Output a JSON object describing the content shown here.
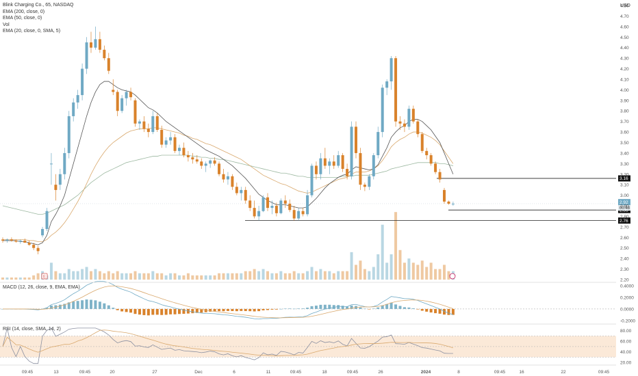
{
  "header": {
    "title": "Blink Charging Co., 65, NASDAQ",
    "indicators": [
      "EMA (200, close, 0)",
      "EMA (50, close, 0)",
      "Vol",
      "EMA (20, close, 0, SMA, 5)"
    ],
    "currency": "USD"
  },
  "panes": {
    "macd_label": "MACD (12, 26, close, 9, EMA, EMA)",
    "rsi_label": "RSI (14, close, SMA, 14, 2)"
  },
  "colors": {
    "up": "#6fa9c4",
    "down": "#d9822b",
    "ema20": "#555555",
    "ema50": "#d9a86c",
    "ema200": "#9cb8a0",
    "vol_up": "#b9d7e3",
    "vol_down": "#efc9a2",
    "macd_line": "#6fa9c4",
    "signal_line": "#d9a86c",
    "rsi_line": "#8a8fa0",
    "rsi_ma": "#d9a86c",
    "rsi_band": "#fbe9d8"
  },
  "chart_data": [
    {
      "type": "candlestick",
      "title": "Blink Charging Co., 65, NASDAQ",
      "ylabel": "USD",
      "ylim": [
        2.2,
        4.8
      ],
      "y_ticks": [
        "4.80",
        "4.70",
        "4.60",
        "4.50",
        "4.40",
        "4.30",
        "4.20",
        "4.10",
        "4.00",
        "3.90",
        "3.80",
        "3.70",
        "3.60",
        "3.50",
        "3.40",
        "3.30",
        "3.20",
        "3.10",
        "3.00",
        "2.90",
        "2.80",
        "2.70",
        "2.60",
        "2.50",
        "2.40",
        "2.30",
        "2.20"
      ],
      "x_ticks": [
        "09:45",
        "13",
        "09:45",
        "20",
        "27",
        "Dec",
        "6",
        "11",
        "09:45",
        "18",
        "09:45",
        "26",
        "2024",
        "8",
        "09:45",
        "16",
        "22",
        "09:45"
      ],
      "ohlc": [
        [
          2.58,
          2.6,
          2.55,
          2.57
        ],
        [
          2.57,
          2.59,
          2.55,
          2.58
        ],
        [
          2.58,
          2.6,
          2.56,
          2.57
        ],
        [
          2.57,
          2.58,
          2.55,
          2.56
        ],
        [
          2.56,
          2.58,
          2.54,
          2.57
        ],
        [
          2.57,
          2.59,
          2.55,
          2.55
        ],
        [
          2.55,
          2.57,
          2.52,
          2.53
        ],
        [
          2.53,
          2.55,
          2.48,
          2.5
        ],
        [
          2.5,
          2.52,
          2.44,
          2.47
        ],
        [
          2.62,
          2.7,
          2.6,
          2.68
        ],
        [
          2.68,
          2.88,
          2.66,
          2.85
        ],
        [
          3.3,
          3.4,
          3.1,
          3.3
        ],
        [
          3.1,
          3.2,
          2.95,
          3.05
        ],
        [
          3.1,
          3.25,
          3.05,
          3.2
        ],
        [
          3.2,
          3.45,
          3.15,
          3.4
        ],
        [
          3.4,
          3.8,
          3.35,
          3.75
        ],
        [
          3.75,
          3.92,
          3.7,
          3.88
        ],
        [
          3.88,
          4.0,
          3.82,
          3.95
        ],
        [
          3.95,
          4.25,
          3.9,
          4.2
        ],
        [
          4.2,
          4.5,
          4.15,
          4.45
        ],
        [
          4.45,
          4.55,
          4.35,
          4.4
        ],
        [
          4.4,
          4.6,
          4.38,
          4.48
        ],
        [
          4.48,
          4.55,
          4.35,
          4.38
        ],
        [
          4.38,
          4.42,
          4.28,
          4.3
        ],
        [
          4.3,
          4.35,
          4.15,
          4.18
        ],
        [
          4.0,
          4.1,
          3.95,
          3.98
        ],
        [
          3.98,
          4.0,
          3.75,
          3.8
        ],
        [
          3.8,
          3.95,
          3.78,
          3.92
        ],
        [
          3.92,
          4.0,
          3.85,
          3.98
        ],
        [
          3.98,
          4.02,
          3.9,
          3.93
        ],
        [
          3.9,
          3.92,
          3.65,
          3.68
        ],
        [
          3.68,
          3.72,
          3.62,
          3.7
        ],
        [
          3.7,
          3.75,
          3.6,
          3.63
        ],
        [
          3.63,
          3.68,
          3.55,
          3.6
        ],
        [
          3.6,
          3.8,
          3.58,
          3.75
        ],
        [
          3.75,
          3.78,
          3.6,
          3.62
        ],
        [
          3.62,
          3.66,
          3.45,
          3.48
        ],
        [
          3.48,
          3.55,
          3.45,
          3.52
        ],
        [
          3.52,
          3.6,
          3.48,
          3.55
        ],
        [
          3.55,
          3.58,
          3.4,
          3.42
        ],
        [
          3.42,
          3.48,
          3.38,
          3.45
        ],
        [
          3.45,
          3.5,
          3.36,
          3.38
        ],
        [
          3.38,
          3.42,
          3.32,
          3.36
        ],
        [
          3.36,
          3.4,
          3.3,
          3.34
        ],
        [
          3.34,
          3.38,
          3.3,
          3.32
        ],
        [
          3.32,
          3.35,
          3.25,
          3.28
        ],
        [
          3.28,
          3.32,
          3.22,
          3.3
        ],
        [
          3.3,
          3.34,
          3.26,
          3.33
        ],
        [
          3.33,
          3.36,
          3.28,
          3.3
        ],
        [
          3.3,
          3.32,
          3.18,
          3.2
        ],
        [
          3.2,
          3.25,
          3.12,
          3.15
        ],
        [
          3.15,
          3.22,
          3.1,
          3.18
        ],
        [
          3.18,
          3.2,
          3.05,
          3.08
        ],
        [
          3.08,
          3.12,
          3.0,
          3.02
        ],
        [
          3.02,
          3.08,
          2.95,
          3.05
        ],
        [
          3.05,
          3.08,
          2.92,
          2.95
        ],
        [
          2.95,
          3.0,
          2.85,
          2.88
        ],
        [
          2.88,
          2.95,
          2.78,
          2.8
        ],
        [
          2.8,
          2.9,
          2.76,
          2.85
        ],
        [
          2.85,
          3.0,
          2.84,
          2.98
        ],
        [
          2.98,
          3.02,
          2.85,
          2.88
        ],
        [
          2.88,
          2.95,
          2.82,
          2.9
        ],
        [
          2.9,
          2.93,
          2.8,
          2.83
        ],
        [
          2.83,
          2.97,
          2.82,
          2.95
        ],
        [
          2.95,
          3.0,
          2.88,
          2.92
        ],
        [
          2.92,
          2.96,
          2.84,
          2.86
        ],
        [
          2.86,
          2.9,
          2.76,
          2.78
        ],
        [
          2.78,
          2.88,
          2.76,
          2.85
        ],
        [
          2.85,
          2.88,
          2.8,
          2.82
        ],
        [
          2.82,
          3.05,
          2.8,
          3.0
        ],
        [
          3.0,
          3.3,
          2.98,
          3.28
        ],
        [
          3.28,
          3.32,
          3.15,
          3.2
        ],
        [
          3.2,
          3.4,
          3.15,
          3.35
        ],
        [
          3.35,
          3.45,
          3.25,
          3.28
        ],
        [
          3.28,
          3.35,
          3.2,
          3.32
        ],
        [
          3.32,
          3.38,
          3.25,
          3.28
        ],
        [
          3.28,
          3.42,
          3.26,
          3.38
        ],
        [
          3.38,
          3.4,
          3.22,
          3.25
        ],
        [
          3.25,
          3.3,
          3.15,
          3.18
        ],
        [
          3.18,
          3.7,
          3.15,
          3.65
        ],
        [
          3.65,
          3.7,
          3.35,
          3.4
        ],
        [
          3.4,
          3.45,
          3.05,
          3.1
        ],
        [
          3.1,
          3.12,
          3.04,
          3.08
        ],
        [
          3.08,
          3.2,
          3.05,
          3.18
        ],
        [
          3.18,
          3.4,
          3.15,
          3.38
        ],
        [
          3.38,
          3.65,
          3.35,
          3.6
        ],
        [
          3.6,
          4.05,
          3.55,
          4.02
        ],
        [
          4.02,
          4.1,
          3.95,
          4.08
        ],
        [
          4.08,
          4.32,
          4.0,
          4.3
        ],
        [
          4.3,
          4.32,
          3.65,
          3.7
        ],
        [
          3.7,
          3.75,
          3.62,
          3.68
        ],
        [
          3.68,
          3.72,
          3.6,
          3.65
        ],
        [
          3.65,
          3.85,
          3.62,
          3.82
        ],
        [
          3.82,
          3.85,
          3.68,
          3.7
        ],
        [
          3.7,
          3.72,
          3.55,
          3.58
        ],
        [
          3.58,
          3.6,
          3.4,
          3.42
        ],
        [
          3.42,
          3.45,
          3.34,
          3.38
        ],
        [
          3.38,
          3.4,
          3.28,
          3.3
        ],
        [
          3.3,
          3.32,
          3.2,
          3.22
        ],
        [
          3.22,
          3.25,
          3.12,
          3.15
        ],
        [
          3.05,
          3.07,
          2.92,
          2.94
        ],
        [
          2.94,
          2.95,
          2.91,
          2.92
        ],
        [
          2.92,
          2.94,
          2.9,
          2.92
        ]
      ],
      "ema20": [
        2.57,
        2.57,
        2.57,
        2.57,
        2.56,
        2.56,
        2.55,
        2.54,
        2.53,
        2.55,
        2.62,
        2.75,
        2.82,
        2.9,
        3.0,
        3.15,
        3.3,
        3.45,
        3.6,
        3.75,
        3.88,
        3.98,
        4.05,
        4.08,
        4.08,
        4.05,
        4.02,
        4.0,
        3.99,
        3.98,
        3.95,
        3.91,
        3.87,
        3.83,
        3.81,
        3.78,
        3.74,
        3.7,
        3.67,
        3.64,
        3.61,
        3.58,
        3.55,
        3.52,
        3.49,
        3.46,
        3.43,
        3.41,
        3.39,
        3.37,
        3.34,
        3.31,
        3.28,
        3.24,
        3.2,
        3.16,
        3.11,
        3.06,
        3.01,
        2.98,
        2.95,
        2.93,
        2.91,
        2.91,
        2.91,
        2.9,
        2.89,
        2.88,
        2.88,
        2.89,
        2.93,
        2.97,
        3.02,
        3.07,
        3.11,
        3.14,
        3.17,
        3.19,
        3.2,
        3.24,
        3.27,
        3.26,
        3.25,
        3.24,
        3.25,
        3.29,
        3.37,
        3.45,
        3.55,
        3.6,
        3.64,
        3.66,
        3.7,
        3.72,
        3.72,
        3.7,
        3.66,
        3.62,
        3.56,
        3.5,
        3.4,
        3.3,
        3.2
      ],
      "ema50": [
        2.58,
        2.58,
        2.58,
        2.58,
        2.58,
        2.58,
        2.57,
        2.57,
        2.56,
        2.56,
        2.58,
        2.62,
        2.65,
        2.69,
        2.74,
        2.8,
        2.87,
        2.94,
        3.02,
        3.11,
        3.2,
        3.28,
        3.35,
        3.41,
        3.46,
        3.5,
        3.53,
        3.56,
        3.59,
        3.61,
        3.62,
        3.63,
        3.63,
        3.63,
        3.64,
        3.64,
        3.63,
        3.62,
        3.61,
        3.6,
        3.59,
        3.57,
        3.56,
        3.54,
        3.53,
        3.51,
        3.49,
        3.48,
        3.46,
        3.44,
        3.42,
        3.4,
        3.38,
        3.36,
        3.34,
        3.31,
        3.28,
        3.25,
        3.22,
        3.19,
        3.17,
        3.15,
        3.13,
        3.11,
        3.1,
        3.08,
        3.06,
        3.04,
        3.03,
        3.02,
        3.03,
        3.05,
        3.07,
        3.09,
        3.11,
        3.13,
        3.15,
        3.16,
        3.17,
        3.2,
        3.22,
        3.22,
        3.22,
        3.23,
        3.25,
        3.28,
        3.33,
        3.39,
        3.46,
        3.5,
        3.53,
        3.55,
        3.58,
        3.6,
        3.6,
        3.59,
        3.57,
        3.55,
        3.52,
        3.48,
        3.42,
        3.36,
        3.3
      ],
      "ema200": [
        2.9,
        2.89,
        2.88,
        2.87,
        2.86,
        2.85,
        2.84,
        2.83,
        2.82,
        2.82,
        2.83,
        2.85,
        2.87,
        2.89,
        2.91,
        2.94,
        2.97,
        3.0,
        3.04,
        3.08,
        3.12,
        3.15,
        3.18,
        3.21,
        3.23,
        3.25,
        3.27,
        3.29,
        3.31,
        3.32,
        3.33,
        3.34,
        3.35,
        3.36,
        3.37,
        3.37,
        3.38,
        3.38,
        3.38,
        3.38,
        3.38,
        3.38,
        3.38,
        3.37,
        3.37,
        3.36,
        3.36,
        3.35,
        3.35,
        3.34,
        3.34,
        3.33,
        3.32,
        3.31,
        3.3,
        3.29,
        3.28,
        3.27,
        3.26,
        3.25,
        3.24,
        3.23,
        3.22,
        3.21,
        3.21,
        3.2,
        3.19,
        3.18,
        3.18,
        3.17,
        3.17,
        3.17,
        3.17,
        3.17,
        3.17,
        3.17,
        3.17,
        3.18,
        3.18,
        3.18,
        3.19,
        3.19,
        3.19,
        3.19,
        3.2,
        3.21,
        3.22,
        3.23,
        3.25,
        3.26,
        3.27,
        3.28,
        3.29,
        3.3,
        3.31,
        3.31,
        3.31,
        3.31,
        3.31,
        3.3,
        3.3,
        3.29,
        3.28
      ],
      "volume": [
        0.1,
        0.1,
        0.1,
        0.1,
        0.1,
        0.1,
        0.1,
        0.2,
        0.3,
        0.4,
        0.2,
        0.8,
        0.4,
        0.3,
        0.3,
        0.5,
        0.4,
        0.4,
        0.5,
        0.6,
        0.4,
        0.5,
        0.4,
        0.3,
        0.4,
        0.3,
        0.4,
        0.3,
        0.3,
        0.3,
        0.4,
        0.3,
        0.3,
        0.3,
        0.4,
        0.3,
        0.3,
        0.2,
        0.3,
        0.3,
        0.2,
        0.2,
        0.3,
        0.2,
        0.2,
        0.2,
        0.2,
        0.2,
        0.2,
        0.3,
        0.3,
        0.3,
        0.3,
        0.3,
        0.3,
        0.4,
        0.4,
        0.5,
        0.4,
        0.5,
        0.4,
        0.3,
        0.3,
        0.4,
        0.3,
        0.3,
        0.4,
        0.3,
        0.3,
        0.4,
        0.6,
        0.4,
        0.5,
        0.4,
        0.4,
        0.3,
        0.4,
        0.4,
        0.4,
        1.3,
        0.7,
        0.9,
        0.5,
        0.4,
        0.6,
        1.2,
        2.6,
        0.8,
        1.2,
        3.2,
        1.4,
        0.8,
        1.0,
        0.8,
        0.7,
        0.9,
        0.6,
        0.8,
        0.5,
        0.5,
        0.7,
        0.4,
        0.4
      ],
      "labels_right": {
        "last": "2.92",
        "last_sub": "00:48",
        "line1": "3.16",
        "line2": "2.86",
        "line3": "2.76"
      }
    },
    {
      "type": "line",
      "title": "MACD (12, 26, close, 9, EMA, EMA)",
      "ylim": [
        -0.25,
        0.45
      ],
      "y_ticks": [
        "0.4000",
        "0.2000",
        "0.0000",
        "-0.2000"
      ]
    },
    {
      "type": "line",
      "title": "RSI (14, close, SMA, 14, 2)",
      "ylim": [
        15,
        90
      ],
      "y_ticks": [
        "80.00",
        "60.00",
        "40.00",
        "20.00"
      ]
    }
  ]
}
